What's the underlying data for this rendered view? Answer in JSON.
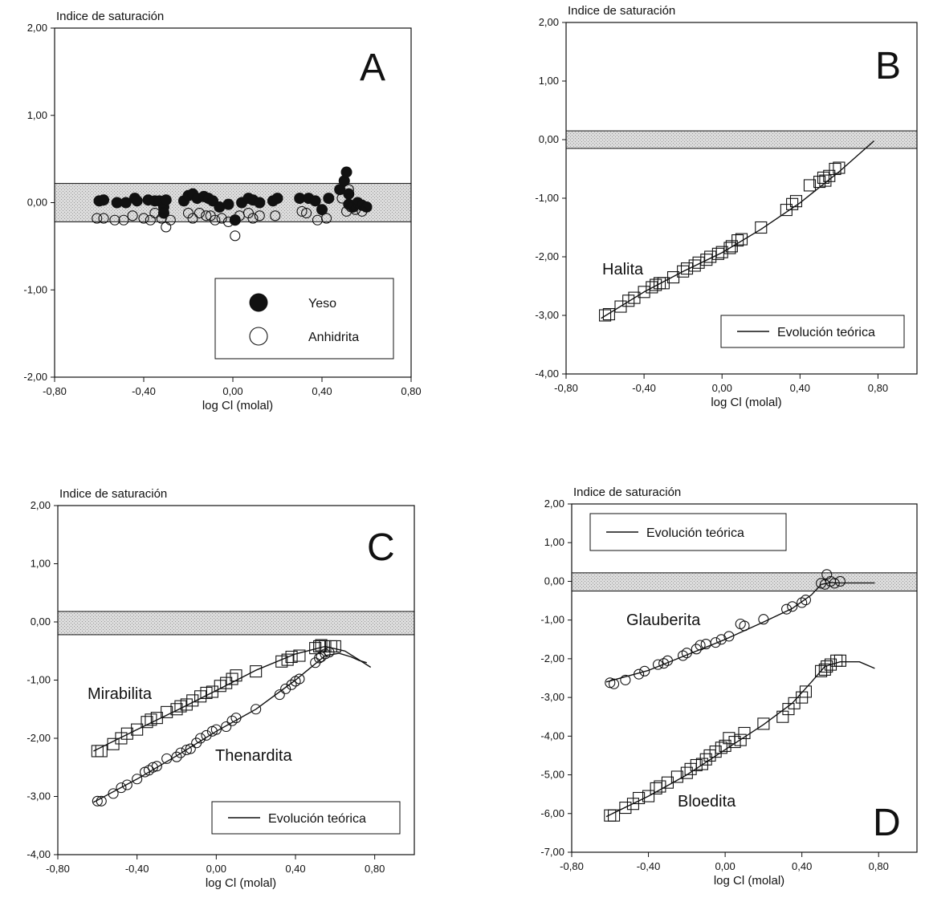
{
  "chart_data": [
    {
      "panel": "A",
      "type": "scatter",
      "letter": "A",
      "ylabel": "Indice de saturación",
      "xlabel": "log Cl (molal)",
      "xlim": [
        -0.8,
        0.8
      ],
      "ylim": [
        -2.0,
        2.0
      ],
      "xticks": [
        "-0,80",
        "-0,40",
        "0,00",
        "0,40",
        "0,80"
      ],
      "yticks": [
        "2,00",
        "1,00",
        "0,00",
        "-1,00",
        "-2,00"
      ],
      "band": [
        -0.22,
        0.22
      ],
      "legend": [
        {
          "label": "Yeso",
          "marker": "filled-circle"
        },
        {
          "label": "Anhidrita",
          "marker": "open-circle"
        }
      ],
      "series": [
        {
          "name": "Yeso",
          "marker": "filled-circle",
          "x": [
            -0.6,
            -0.58,
            -0.52,
            -0.48,
            -0.44,
            -0.43,
            -0.38,
            -0.35,
            -0.33,
            -0.31,
            -0.31,
            -0.3,
            -0.22,
            -0.2,
            -0.18,
            -0.16,
            -0.13,
            -0.11,
            -0.09,
            -0.06,
            -0.02,
            0.01,
            0.04,
            0.07,
            0.09,
            0.12,
            0.18,
            0.2,
            0.3,
            0.34,
            0.37,
            0.4,
            0.43,
            0.48,
            0.5,
            0.51,
            0.52,
            0.52,
            0.54,
            0.56,
            0.58,
            0.6
          ],
          "y": [
            0.02,
            0.03,
            0.0,
            0.0,
            0.05,
            0.02,
            0.03,
            0.02,
            0.02,
            -0.05,
            -0.12,
            0.03,
            0.02,
            0.08,
            0.1,
            0.05,
            0.07,
            0.05,
            0.02,
            -0.05,
            -0.02,
            -0.2,
            0.0,
            0.05,
            0.03,
            0.0,
            0.02,
            0.05,
            0.05,
            0.05,
            0.02,
            -0.08,
            0.05,
            0.15,
            0.25,
            0.35,
            0.1,
            -0.02,
            -0.05,
            0.0,
            -0.03,
            -0.05
          ]
        },
        {
          "name": "Anhidrita",
          "marker": "open-circle",
          "x": [
            -0.61,
            -0.58,
            -0.53,
            -0.49,
            -0.45,
            -0.4,
            -0.37,
            -0.35,
            -0.32,
            -0.3,
            -0.28,
            -0.2,
            -0.18,
            -0.15,
            -0.12,
            -0.1,
            -0.08,
            -0.05,
            -0.02,
            0.01,
            0.03,
            0.07,
            0.09,
            0.12,
            0.19,
            0.31,
            0.33,
            0.38,
            0.42,
            0.49,
            0.51,
            0.52,
            0.53,
            0.55,
            0.58
          ],
          "y": [
            -0.18,
            -0.18,
            -0.2,
            -0.2,
            -0.15,
            -0.18,
            -0.2,
            -0.12,
            -0.18,
            -0.28,
            -0.2,
            -0.12,
            -0.18,
            -0.12,
            -0.15,
            -0.15,
            -0.2,
            -0.18,
            -0.22,
            -0.38,
            -0.15,
            -0.12,
            -0.18,
            -0.15,
            -0.15,
            -0.1,
            -0.12,
            -0.2,
            -0.18,
            0.05,
            -0.1,
            0.15,
            -0.05,
            -0.08,
            -0.1
          ]
        }
      ]
    },
    {
      "panel": "B",
      "type": "scatter",
      "letter": "B",
      "ylabel": "Indice de saturación",
      "xlabel": "log Cl (molal)",
      "xlim": [
        -0.8,
        1.0
      ],
      "ylim": [
        -4.0,
        2.0
      ],
      "xticks": [
        "-0,80",
        "-0,40",
        "0,00",
        "0,40",
        "0,80"
      ],
      "yticks": [
        "2,00",
        "1,00",
        "0,00",
        "-1,00",
        "-2,00",
        "-3,00",
        "-4,00"
      ],
      "band": [
        -0.15,
        0.15
      ],
      "legend": [
        {
          "label": "Evolución teórica",
          "marker": "line"
        }
      ],
      "annotations": [
        {
          "text": "Halita",
          "x": -0.62,
          "y": -2.22
        }
      ],
      "series": [
        {
          "name": "Halita",
          "marker": "open-square",
          "x": [
            -0.6,
            -0.58,
            -0.52,
            -0.48,
            -0.45,
            -0.4,
            -0.36,
            -0.34,
            -0.32,
            -0.3,
            -0.25,
            -0.2,
            -0.18,
            -0.14,
            -0.12,
            -0.08,
            -0.06,
            -0.02,
            0.0,
            0.04,
            0.05,
            0.08,
            0.1,
            0.2,
            0.33,
            0.36,
            0.38,
            0.45,
            0.5,
            0.52,
            0.53,
            0.55,
            0.58,
            0.6
          ],
          "y": [
            -3.0,
            -2.98,
            -2.85,
            -2.75,
            -2.7,
            -2.6,
            -2.52,
            -2.48,
            -2.45,
            -2.45,
            -2.35,
            -2.25,
            -2.2,
            -2.15,
            -2.1,
            -2.05,
            -2.0,
            -1.95,
            -1.92,
            -1.85,
            -1.82,
            -1.72,
            -1.7,
            -1.5,
            -1.2,
            -1.1,
            -1.05,
            -0.78,
            -0.72,
            -0.65,
            -0.7,
            -0.62,
            -0.5,
            -0.48
          ]
        },
        {
          "name": "Evolución teórica",
          "marker": "line",
          "x": [
            -0.62,
            -0.4,
            -0.2,
            0.0,
            0.2,
            0.4,
            0.6,
            0.78
          ],
          "y": [
            -3.05,
            -2.6,
            -2.25,
            -1.93,
            -1.53,
            -1.08,
            -0.55,
            -0.02
          ]
        }
      ]
    },
    {
      "panel": "C",
      "type": "scatter",
      "letter": "C",
      "ylabel": "Indice de saturación",
      "xlabel": "log Cl (molal)",
      "xlim": [
        -0.8,
        1.0
      ],
      "ylim": [
        -4.0,
        2.0
      ],
      "xticks": [
        "-0,80",
        "-0,40",
        "0,00",
        "0,40",
        "0,80"
      ],
      "yticks": [
        "2,00",
        "1,00",
        "0,00",
        "-1,00",
        "-2,00",
        "-3,00",
        "-4,00"
      ],
      "band": [
        -0.22,
        0.18
      ],
      "legend": [
        {
          "label": "Evolución teórica",
          "marker": "line"
        }
      ],
      "annotations": [
        {
          "text": "Mirabilita",
          "x": -0.65,
          "y": -1.32
        },
        {
          "text": "Thenardita",
          "x": -0.01,
          "y": -2.4
        }
      ],
      "series": [
        {
          "name": "Mirabilita",
          "marker": "open-square",
          "x": [
            -0.6,
            -0.58,
            -0.52,
            -0.48,
            -0.45,
            -0.4,
            -0.35,
            -0.33,
            -0.3,
            -0.25,
            -0.2,
            -0.18,
            -0.15,
            -0.12,
            -0.08,
            -0.05,
            -0.02,
            0.02,
            0.05,
            0.08,
            0.1,
            0.2,
            0.33,
            0.36,
            0.38,
            0.42,
            0.5,
            0.52,
            0.53,
            0.55,
            0.58,
            0.6
          ],
          "y": [
            -2.22,
            -2.22,
            -2.1,
            -2.0,
            -1.92,
            -1.85,
            -1.72,
            -1.68,
            -1.65,
            -1.55,
            -1.5,
            -1.45,
            -1.42,
            -1.35,
            -1.28,
            -1.22,
            -1.2,
            -1.1,
            -1.05,
            -0.98,
            -0.92,
            -0.85,
            -0.68,
            -0.65,
            -0.6,
            -0.58,
            -0.45,
            -0.42,
            -0.4,
            -0.42,
            -0.42,
            -0.42
          ]
        },
        {
          "name": "Thenardita",
          "marker": "open-circle",
          "x": [
            -0.6,
            -0.58,
            -0.52,
            -0.48,
            -0.45,
            -0.4,
            -0.36,
            -0.34,
            -0.32,
            -0.3,
            -0.25,
            -0.2,
            -0.18,
            -0.15,
            -0.13,
            -0.1,
            -0.08,
            -0.05,
            -0.02,
            0.0,
            0.05,
            0.08,
            0.1,
            0.2,
            0.32,
            0.35,
            0.38,
            0.4,
            0.42,
            0.5,
            0.52,
            0.53,
            0.55,
            0.57
          ],
          "y": [
            -3.08,
            -3.08,
            -2.95,
            -2.85,
            -2.8,
            -2.7,
            -2.58,
            -2.55,
            -2.5,
            -2.48,
            -2.35,
            -2.32,
            -2.25,
            -2.2,
            -2.18,
            -2.08,
            -2.0,
            -1.95,
            -1.88,
            -1.85,
            -1.8,
            -1.7,
            -1.65,
            -1.5,
            -1.25,
            -1.15,
            -1.08,
            -1.02,
            -0.98,
            -0.7,
            -0.62,
            -0.6,
            -0.55,
            -0.52
          ]
        },
        {
          "name": "Evolución teórica (Mirabilita)",
          "marker": "line",
          "x": [
            -0.62,
            -0.4,
            -0.2,
            0.0,
            0.2,
            0.4,
            0.55,
            0.65,
            0.72,
            0.78
          ],
          "y": [
            -2.22,
            -1.85,
            -1.52,
            -1.18,
            -0.83,
            -0.55,
            -0.42,
            -0.5,
            -0.65,
            -0.78
          ]
        },
        {
          "name": "Evolución teórica (Thenardita)",
          "marker": "line",
          "x": [
            -0.62,
            -0.4,
            -0.2,
            0.0,
            0.2,
            0.4,
            0.55,
            0.62,
            0.68,
            0.72,
            0.76
          ],
          "y": [
            -3.1,
            -2.7,
            -2.3,
            -1.88,
            -1.5,
            -1.0,
            -0.58,
            -0.54,
            -0.6,
            -0.66,
            -0.7
          ]
        }
      ]
    },
    {
      "panel": "D",
      "type": "scatter",
      "letter": "D",
      "ylabel": "Indice de saturación",
      "xlabel": "log Cl (molal)",
      "xlim": [
        -0.8,
        1.0
      ],
      "ylim": [
        -7.0,
        2.0
      ],
      "xticks": [
        "-0,80",
        "-0,40",
        "0,00",
        "0,40",
        "0,80"
      ],
      "yticks": [
        "2,00",
        "1,00",
        "0,00",
        "-1,00",
        "-2,00",
        "-3,00",
        "-4,00",
        "-5,00",
        "-6,00",
        "-7,00"
      ],
      "band": [
        -0.25,
        0.22
      ],
      "legend": [
        {
          "label": "Evolución teórica",
          "marker": "line"
        }
      ],
      "annotations": [
        {
          "text": "Glauberita",
          "x": -0.5,
          "y": -1.1
        },
        {
          "text": "Bloedita",
          "x": -0.25,
          "y": -5.75
        }
      ],
      "series": [
        {
          "name": "Glauberita",
          "marker": "open-circle",
          "x": [
            -0.6,
            -0.58,
            -0.52,
            -0.45,
            -0.42,
            -0.35,
            -0.32,
            -0.3,
            -0.22,
            -0.2,
            -0.15,
            -0.13,
            -0.1,
            -0.05,
            -0.02,
            0.02,
            0.08,
            0.1,
            0.2,
            0.32,
            0.35,
            0.4,
            0.42,
            0.5,
            0.52,
            0.53,
            0.55,
            0.57,
            0.6
          ],
          "y": [
            -2.62,
            -2.65,
            -2.55,
            -2.4,
            -2.32,
            -2.15,
            -2.12,
            -2.05,
            -1.92,
            -1.85,
            -1.75,
            -1.65,
            -1.62,
            -1.58,
            -1.5,
            -1.42,
            -1.1,
            -1.15,
            -0.98,
            -0.72,
            -0.65,
            -0.55,
            -0.48,
            -0.05,
            -0.08,
            0.18,
            0.0,
            -0.05,
            0.0
          ]
        },
        {
          "name": "Bloedita",
          "marker": "open-square",
          "x": [
            -0.6,
            -0.58,
            -0.52,
            -0.48,
            -0.45,
            -0.4,
            -0.36,
            -0.34,
            -0.3,
            -0.25,
            -0.2,
            -0.18,
            -0.15,
            -0.12,
            -0.1,
            -0.08,
            -0.05,
            -0.02,
            0.0,
            0.02,
            0.05,
            0.08,
            0.1,
            0.2,
            0.3,
            0.33,
            0.36,
            0.4,
            0.42,
            0.5,
            0.52,
            0.53,
            0.55,
            0.58,
            0.6
          ],
          "y": [
            -6.05,
            -6.05,
            -5.85,
            -5.75,
            -5.6,
            -5.55,
            -5.35,
            -5.3,
            -5.2,
            -5.05,
            -4.95,
            -4.85,
            -4.75,
            -4.72,
            -4.6,
            -4.5,
            -4.4,
            -4.3,
            -4.25,
            -4.05,
            -4.15,
            -4.1,
            -3.92,
            -3.68,
            -3.5,
            -3.3,
            -3.15,
            -3.0,
            -2.85,
            -2.32,
            -2.28,
            -2.2,
            -2.15,
            -2.05,
            -2.05
          ]
        },
        {
          "name": "Evolución teórica (Glauberita)",
          "marker": "line",
          "x": [
            -0.62,
            -0.4,
            -0.2,
            0.0,
            0.2,
            0.35,
            0.45,
            0.5,
            0.55,
            0.6,
            0.7,
            0.78
          ],
          "y": [
            -2.6,
            -2.3,
            -1.9,
            -1.5,
            -1.05,
            -0.7,
            -0.35,
            -0.08,
            -0.03,
            -0.04,
            -0.04,
            -0.04
          ]
        },
        {
          "name": "Evolución teórica (Bloedita)",
          "marker": "line",
          "x": [
            -0.62,
            -0.4,
            -0.2,
            0.0,
            0.2,
            0.35,
            0.45,
            0.52,
            0.6,
            0.7,
            0.78
          ],
          "y": [
            -6.08,
            -5.55,
            -5.0,
            -4.35,
            -3.7,
            -3.15,
            -2.6,
            -2.2,
            -2.08,
            -2.08,
            -2.25
          ]
        }
      ]
    }
  ]
}
